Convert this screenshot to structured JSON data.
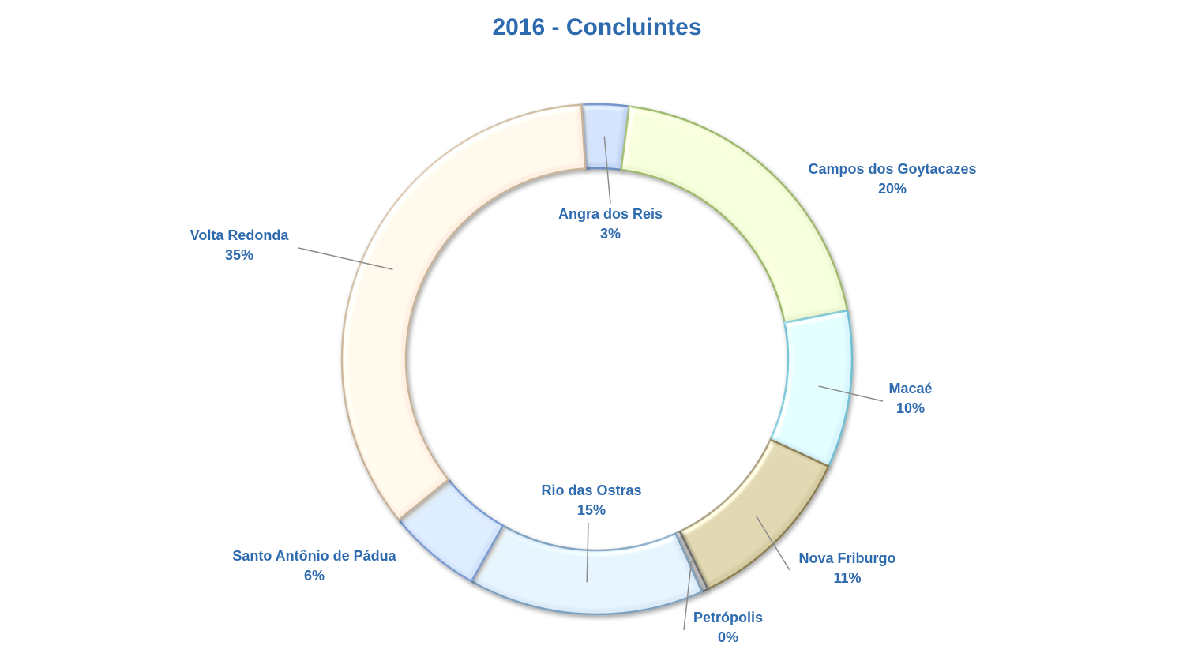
{
  "chart_data": {
    "type": "donut",
    "title": "2016  - Concluintes",
    "start_angle_deg": -3.5,
    "colors": {
      "label_text": "#2E6AAE",
      "leader_line": "#8c8c8c"
    },
    "slices": [
      {
        "name": "Angra dos Reis",
        "percent_label": "3%",
        "value": 3,
        "fill": "#c7d8f5",
        "stroke": "#6e8fc4"
      },
      {
        "name": "Campos dos Goytacazes",
        "percent_label": "20%",
        "value": 20,
        "fill": "#eef8d2",
        "stroke": "#9fb86d"
      },
      {
        "name": "Macaé",
        "percent_label": "10%",
        "value": 10,
        "fill": "#d8f6fc",
        "stroke": "#6fbfd2"
      },
      {
        "name": "Nova Friburgo",
        "percent_label": "11%",
        "value": 11,
        "fill": "#d6cca3",
        "stroke": "#8c7f52"
      },
      {
        "name": "Petrópolis",
        "percent_label": "0%",
        "value": 0.4,
        "fill": "#bdbdbd",
        "stroke": "#6f6f6f"
      },
      {
        "name": "Rio das Ostras",
        "percent_label": "15%",
        "value": 15,
        "fill": "#dcebf8",
        "stroke": "#7fa2c0"
      },
      {
        "name": "Santo Antônio de Pádua",
        "percent_label": "6%",
        "value": 6,
        "fill": "#d3e3fa",
        "stroke": "#7b9bd0"
      },
      {
        "name": "Volta Redonda",
        "percent_label": "35%",
        "value": 35,
        "fill": "#fdf0e2",
        "stroke": "#c7b49a"
      }
    ]
  }
}
